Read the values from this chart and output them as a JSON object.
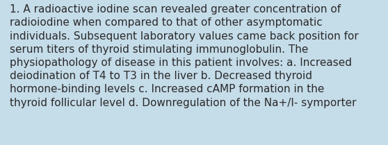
{
  "background_color": "#c5dce9",
  "text_color": "#2a2a2a",
  "lines": [
    "1. A radioactive iodine scan revealed greater concentration of",
    "radioiodine when compared to that of other asymptomatic",
    "individuals. Subsequent laboratory values came back position for",
    "serum titers of thyroid stimulating immunoglobulin. The",
    "physiopathology of disease in this patient involves: a. Increased",
    "deiodination of T4 to T3 in the liver b. Decreased thyroid",
    "hormone-binding levels c. Increased cAMP formation in the",
    "thyroid follicular level d. Downregulation of the Na+/I- symporter"
  ],
  "font_size": 11.0,
  "font_family": "DejaVu Sans",
  "fig_width": 5.58,
  "fig_height": 2.09,
  "dpi": 100
}
